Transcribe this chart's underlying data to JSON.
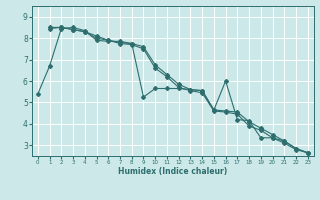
{
  "xlabel": "Humidex (Indice chaleur)",
  "bg_color": "#cce8e8",
  "line_color": "#2e6e6e",
  "grid_color": "#ffffff",
  "xlim": [
    -0.5,
    23.5
  ],
  "ylim": [
    2.5,
    9.5
  ],
  "xticks": [
    0,
    1,
    2,
    3,
    4,
    5,
    6,
    7,
    8,
    9,
    10,
    11,
    12,
    13,
    14,
    15,
    16,
    17,
    18,
    19,
    20,
    21,
    22,
    23
  ],
  "yticks": [
    3,
    4,
    5,
    6,
    7,
    8,
    9
  ],
  "series": [
    {
      "x": [
        0,
        1,
        2,
        3,
        4,
        5,
        6,
        7,
        8,
        9,
        10,
        11,
        12,
        13,
        14,
        15,
        16,
        17,
        18,
        19,
        20,
        21,
        22,
        23
      ],
      "y": [
        5.4,
        6.7,
        8.45,
        8.5,
        8.35,
        7.9,
        7.85,
        7.85,
        7.75,
        5.25,
        5.65,
        5.65,
        5.65,
        5.6,
        5.55,
        4.65,
        6.0,
        4.2,
        4.15,
        3.35,
        3.35,
        3.2,
        2.85,
        2.65
      ]
    },
    {
      "x": [
        1,
        2,
        3,
        4,
        5,
        6,
        7,
        8,
        9,
        10,
        11,
        12,
        13,
        14,
        15,
        16,
        17,
        18,
        19,
        20,
        21,
        22,
        23
      ],
      "y": [
        8.5,
        8.5,
        8.4,
        8.3,
        8.1,
        7.9,
        7.8,
        7.75,
        7.6,
        6.75,
        6.3,
        5.85,
        5.6,
        5.55,
        4.65,
        4.6,
        4.55,
        4.1,
        3.8,
        3.5,
        3.2,
        2.85,
        2.65
      ]
    },
    {
      "x": [
        1,
        2,
        3,
        4,
        5,
        6,
        7,
        8,
        9,
        10,
        11,
        12,
        13,
        14,
        15,
        16,
        17,
        18,
        19,
        20,
        21,
        22,
        23
      ],
      "y": [
        8.45,
        8.5,
        8.4,
        8.3,
        8.0,
        7.9,
        7.75,
        7.7,
        7.5,
        6.6,
        6.2,
        5.7,
        5.55,
        5.45,
        4.6,
        4.55,
        4.45,
        3.9,
        3.7,
        3.35,
        3.1,
        2.8,
        2.65
      ]
    }
  ]
}
